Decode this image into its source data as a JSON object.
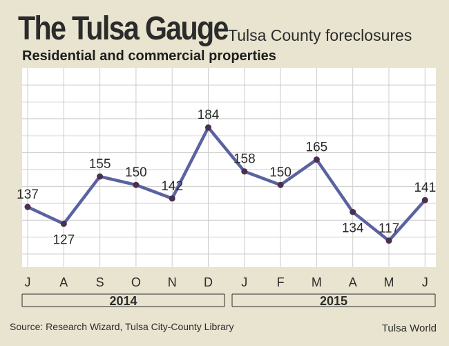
{
  "header": {
    "title": "The Tulsa Gauge",
    "subtitle": "Tulsa County foreclosures",
    "subhead": "Residential and commercial properties"
  },
  "footer": {
    "source": "Source: Research Wizard, Tulsa City-County Library",
    "credit": "Tulsa World"
  },
  "colors": {
    "background": "#e9e4cf",
    "plot_background": "#ffffff",
    "line": "#5b62a0",
    "marker": "#4a2f4f",
    "grid": "#cccccc",
    "text": "#2b2b2b"
  },
  "chart_data": {
    "type": "line",
    "title": "The Tulsa Gauge",
    "subtitle": "Tulsa County foreclosures",
    "ylabel": "Residential and commercial properties",
    "categories": [
      "J",
      "A",
      "S",
      "O",
      "N",
      "D",
      "J",
      "F",
      "M",
      "A",
      "M",
      "J"
    ],
    "values": [
      137,
      127,
      155,
      150,
      142,
      184,
      158,
      150,
      165,
      134,
      117,
      141
    ],
    "year_groups": [
      {
        "label": "2014",
        "start_index": 0,
        "end_index": 5
      },
      {
        "label": "2015",
        "start_index": 6,
        "end_index": 11
      }
    ],
    "ylim": [
      100,
      190
    ],
    "grid": true,
    "label_positions": [
      "above",
      "below",
      "above",
      "above",
      "above",
      "above",
      "above",
      "above",
      "above",
      "below",
      "above",
      "above"
    ]
  }
}
